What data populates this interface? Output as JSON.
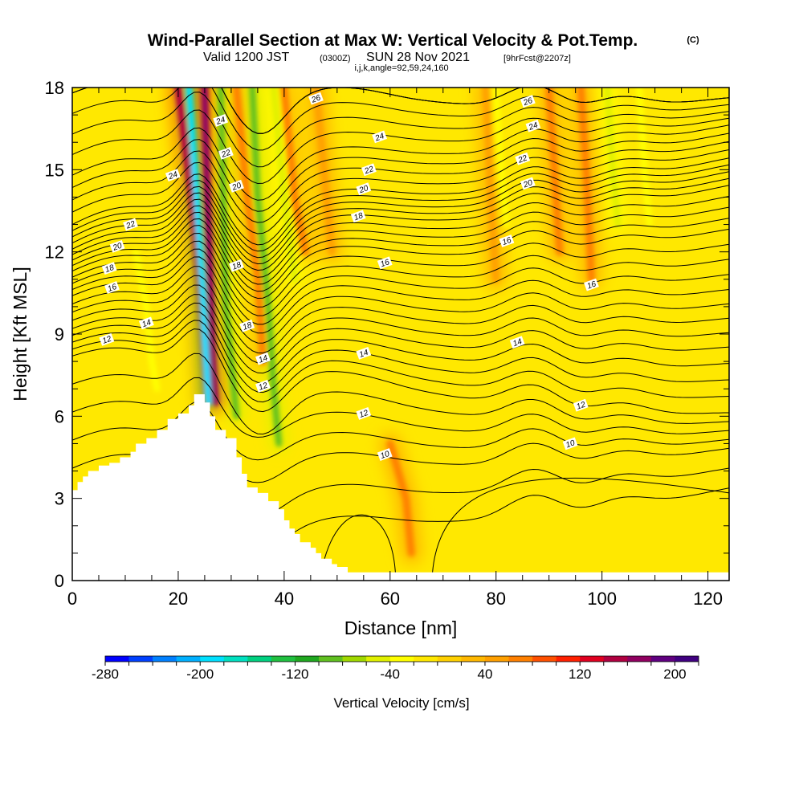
{
  "title": {
    "main": "Wind-Parallel Section at Max W: Vertical Velocity & Pot.Temp.",
    "mark": "(C)",
    "line2_a": "Valid 1200 JST",
    "line2_b": "(0300Z)",
    "line2_c": "SUN 28 Nov 2021",
    "line2_d": "[9hrFcst@2207z]",
    "line3": "i,j,k,angle=92,59,24,160"
  },
  "chart_data": {
    "type": "heatmap",
    "xlabel": "Distance [nm]",
    "ylabel": "Height [Kft MSL]",
    "xlim": [
      0,
      124
    ],
    "ylim": [
      0,
      18
    ],
    "x_ticks": [
      0,
      20,
      40,
      60,
      80,
      100,
      120
    ],
    "y_ticks": [
      0,
      3,
      6,
      9,
      12,
      15,
      18
    ],
    "colorbar": {
      "title": "Vertical Velocity [cm/s]",
      "range": [
        -280,
        220
      ],
      "step": 20,
      "tick_values": [
        -280,
        -200,
        -120,
        -40,
        40,
        120,
        200
      ],
      "tick_labels": [
        "-280",
        "-200",
        "-120",
        "-40",
        "40",
        "120",
        "200"
      ],
      "colors": [
        "#0000ff",
        "#0040ff",
        "#0080ff",
        "#00b0ff",
        "#00e0ff",
        "#00e0c0",
        "#00d080",
        "#20c040",
        "#20a820",
        "#60c020",
        "#a0d800",
        "#e0f000",
        "#ffff00",
        "#ffe800",
        "#ffd000",
        "#ffb800",
        "#ffa000",
        "#ff8000",
        "#ff5000",
        "#ff2000",
        "#e00020",
        "#b00040",
        "#900060",
        "#600080",
        "#400080"
      ]
    },
    "terrain_profile": [
      [
        0,
        3.3
      ],
      [
        1,
        3.6
      ],
      [
        2,
        3.8
      ],
      [
        3,
        4.0
      ],
      [
        4,
        4.0
      ],
      [
        5,
        4.2
      ],
      [
        7,
        4.3
      ],
      [
        9,
        4.5
      ],
      [
        11,
        4.7
      ],
      [
        12,
        5.0
      ],
      [
        14,
        5.2
      ],
      [
        16,
        5.5
      ],
      [
        18,
        5.9
      ],
      [
        20,
        6.1
      ],
      [
        22,
        6.4
      ],
      [
        23,
        6.8
      ],
      [
        25,
        6.5
      ],
      [
        26,
        6.0
      ],
      [
        27,
        5.5
      ],
      [
        29,
        5.2
      ],
      [
        31,
        4.5
      ],
      [
        32,
        3.9
      ],
      [
        33,
        3.4
      ],
      [
        35,
        3.2
      ],
      [
        37,
        2.9
      ],
      [
        39,
        2.6
      ],
      [
        40,
        2.2
      ],
      [
        41,
        1.9
      ],
      [
        42,
        1.7
      ],
      [
        43,
        1.4
      ],
      [
        45,
        1.2
      ],
      [
        46,
        1.0
      ],
      [
        47,
        0.8
      ],
      [
        49,
        0.6
      ],
      [
        50,
        0.5
      ],
      [
        52,
        0.3
      ],
      [
        124,
        0.3
      ]
    ],
    "updraft_bands": [
      {
        "polyline": [
          [
            20,
            18
          ],
          [
            22.5,
            14
          ],
          [
            24,
            11
          ],
          [
            25,
            8
          ],
          [
            25.5,
            6.5
          ]
        ],
        "value": 140
      },
      {
        "polyline": [
          [
            25,
            18
          ],
          [
            25.5,
            14
          ],
          [
            26,
            11
          ],
          [
            26.5,
            8
          ],
          [
            27,
            6.5
          ]
        ],
        "value": 160
      },
      {
        "polyline": [
          [
            31,
            18
          ],
          [
            33,
            14
          ],
          [
            35,
            11
          ],
          [
            36,
            8
          ]
        ],
        "value": 70
      },
      {
        "polyline": [
          [
            40,
            18
          ],
          [
            42,
            14
          ],
          [
            44,
            12
          ]
        ],
        "value": 60
      },
      {
        "polyline": [
          [
            46,
            18
          ],
          [
            48,
            14
          ],
          [
            49,
            12
          ]
        ],
        "value": 50
      },
      {
        "polyline": [
          [
            60,
            5
          ],
          [
            63,
            3
          ],
          [
            64,
            1
          ]
        ],
        "value": 60
      },
      {
        "polyline": [
          [
            78,
            18
          ],
          [
            79,
            14
          ],
          [
            80,
            11
          ]
        ],
        "value": 50
      },
      {
        "polyline": [
          [
            90,
            18
          ],
          [
            91,
            15
          ],
          [
            92,
            12
          ]
        ],
        "value": 70
      },
      {
        "polyline": [
          [
            96,
            18
          ],
          [
            97,
            15
          ],
          [
            98,
            11
          ]
        ],
        "value": 60
      }
    ],
    "downdraft_bands": [
      {
        "polyline": [
          [
            22,
            18
          ],
          [
            23.5,
            14
          ],
          [
            24.5,
            11
          ],
          [
            25,
            9
          ],
          [
            25.7,
            6.5
          ]
        ],
        "value": -200
      },
      {
        "polyline": [
          [
            28,
            18
          ],
          [
            28.5,
            14
          ],
          [
            29,
            10
          ],
          [
            30,
            8
          ],
          [
            31,
            6
          ]
        ],
        "value": -100
      },
      {
        "polyline": [
          [
            34,
            18
          ],
          [
            35,
            14
          ],
          [
            37,
            10
          ],
          [
            38,
            7
          ],
          [
            39,
            5
          ]
        ],
        "value": -90
      },
      {
        "polyline": [
          [
            38,
            18
          ],
          [
            40,
            14
          ],
          [
            42,
            11
          ]
        ],
        "value": -50
      },
      {
        "polyline": [
          [
            12,
            12
          ],
          [
            14,
            10
          ],
          [
            15,
            8
          ],
          [
            16,
            7
          ]
        ],
        "value": -40
      },
      {
        "polyline": [
          [
            80,
            18
          ],
          [
            81,
            15
          ],
          [
            82,
            13
          ]
        ],
        "value": -40
      },
      {
        "polyline": [
          [
            101,
            18
          ],
          [
            102,
            15
          ],
          [
            103,
            13
          ]
        ],
        "value": -60
      },
      {
        "polyline": [
          [
            107,
            18
          ],
          [
            108,
            15
          ],
          [
            109,
            13
          ]
        ],
        "value": -40
      }
    ],
    "contours_label_points": [
      {
        "label": "26",
        "x": 46,
        "y": 17.6
      },
      {
        "label": "26",
        "x": 86,
        "y": 17.5
      },
      {
        "label": "24",
        "x": 28,
        "y": 16.8
      },
      {
        "label": "24",
        "x": 58,
        "y": 16.2
      },
      {
        "label": "24",
        "x": 87,
        "y": 16.6
      },
      {
        "label": "24",
        "x": 19,
        "y": 14.8
      },
      {
        "label": "22",
        "x": 29,
        "y": 15.6
      },
      {
        "label": "22",
        "x": 56,
        "y": 15
      },
      {
        "label": "22",
        "x": 85,
        "y": 15.4
      },
      {
        "label": "22",
        "x": 11,
        "y": 13
      },
      {
        "label": "20",
        "x": 31,
        "y": 14.4
      },
      {
        "label": "20",
        "x": 55,
        "y": 14.3
      },
      {
        "label": "20",
        "x": 86,
        "y": 14.5
      },
      {
        "label": "20",
        "x": 8.5,
        "y": 12.2
      },
      {
        "label": "18",
        "x": 54,
        "y": 13.3
      },
      {
        "label": "18",
        "x": 31,
        "y": 11.5
      },
      {
        "label": "18",
        "x": 7,
        "y": 11.4
      },
      {
        "label": "18",
        "x": 33,
        "y": 9.3
      },
      {
        "label": "16",
        "x": 82,
        "y": 12.4
      },
      {
        "label": "16",
        "x": 59,
        "y": 11.6
      },
      {
        "label": "16",
        "x": 98,
        "y": 10.8
      },
      {
        "label": "16",
        "x": 7.5,
        "y": 10.7
      },
      {
        "label": "14",
        "x": 14,
        "y": 9.4
      },
      {
        "label": "14",
        "x": 36,
        "y": 8.1
      },
      {
        "label": "14",
        "x": 55,
        "y": 8.3
      },
      {
        "label": "14",
        "x": 84,
        "y": 8.7
      },
      {
        "label": "12",
        "x": 6.5,
        "y": 8.8
      },
      {
        "label": "12",
        "x": 36,
        "y": 7.1
      },
      {
        "label": "12",
        "x": 55,
        "y": 6.1
      },
      {
        "label": "12",
        "x": 96,
        "y": 6.4
      },
      {
        "label": "10",
        "x": 59,
        "y": 4.6
      },
      {
        "label": "10",
        "x": 94,
        "y": 5.0
      }
    ],
    "grid": false,
    "legend": "colorbar-bottom"
  }
}
